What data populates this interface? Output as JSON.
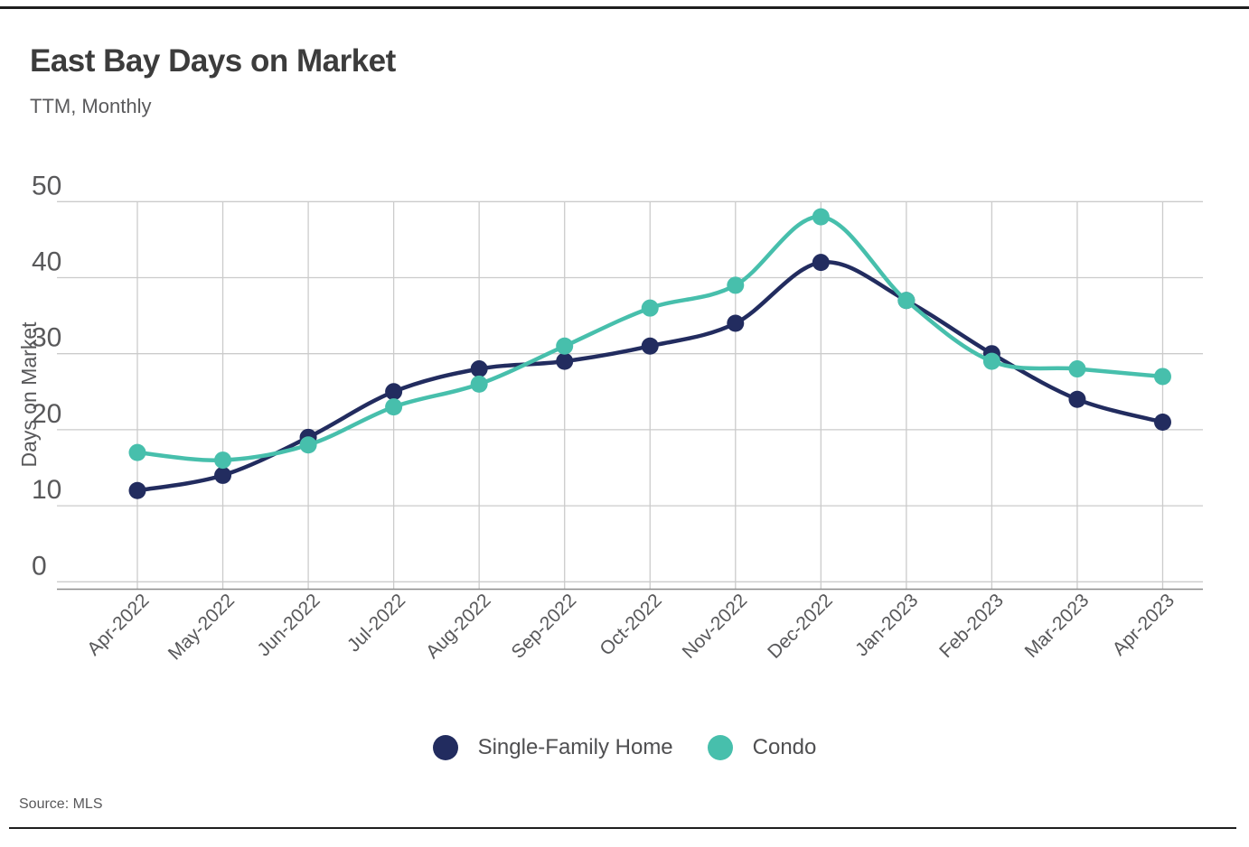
{
  "page": {
    "title": "East Bay Days on Market",
    "subtitle": "TTM, Monthly",
    "source": "Source: MLS"
  },
  "colors": {
    "single_family": "#222c5f",
    "condo": "#47bfac",
    "grid": "#cbcbcb",
    "axis_line": "#8c8c8c",
    "tick_text": "#58585a",
    "title_text": "#3c3c3c",
    "border": "#1e1e1e"
  },
  "chart_data": {
    "type": "line",
    "title": "East Bay Days on Market",
    "subtitle": "TTM, Monthly",
    "xlabel": "",
    "ylabel": "Days on Market",
    "ylim": [
      0,
      50
    ],
    "yticks": [
      0,
      10,
      20,
      30,
      40,
      50
    ],
    "grid": true,
    "legend_position": "bottom",
    "categories": [
      "Apr-2022",
      "May-2022",
      "Jun-2022",
      "Jul-2022",
      "Aug-2022",
      "Sep-2022",
      "Oct-2022",
      "Nov-2022",
      "Dec-2022",
      "Jan-2023",
      "Feb-2023",
      "Mar-2023",
      "Apr-2023"
    ],
    "series": [
      {
        "name": "Single-Family Home",
        "color": "#222c5f",
        "values": [
          12,
          14,
          19,
          25,
          28,
          29,
          31,
          34,
          42,
          37,
          30,
          24,
          21
        ]
      },
      {
        "name": "Condo",
        "color": "#47bfac",
        "values": [
          17,
          16,
          18,
          23,
          26,
          31,
          36,
          39,
          48,
          37,
          29,
          28,
          27
        ]
      }
    ],
    "source": "Source: MLS"
  }
}
